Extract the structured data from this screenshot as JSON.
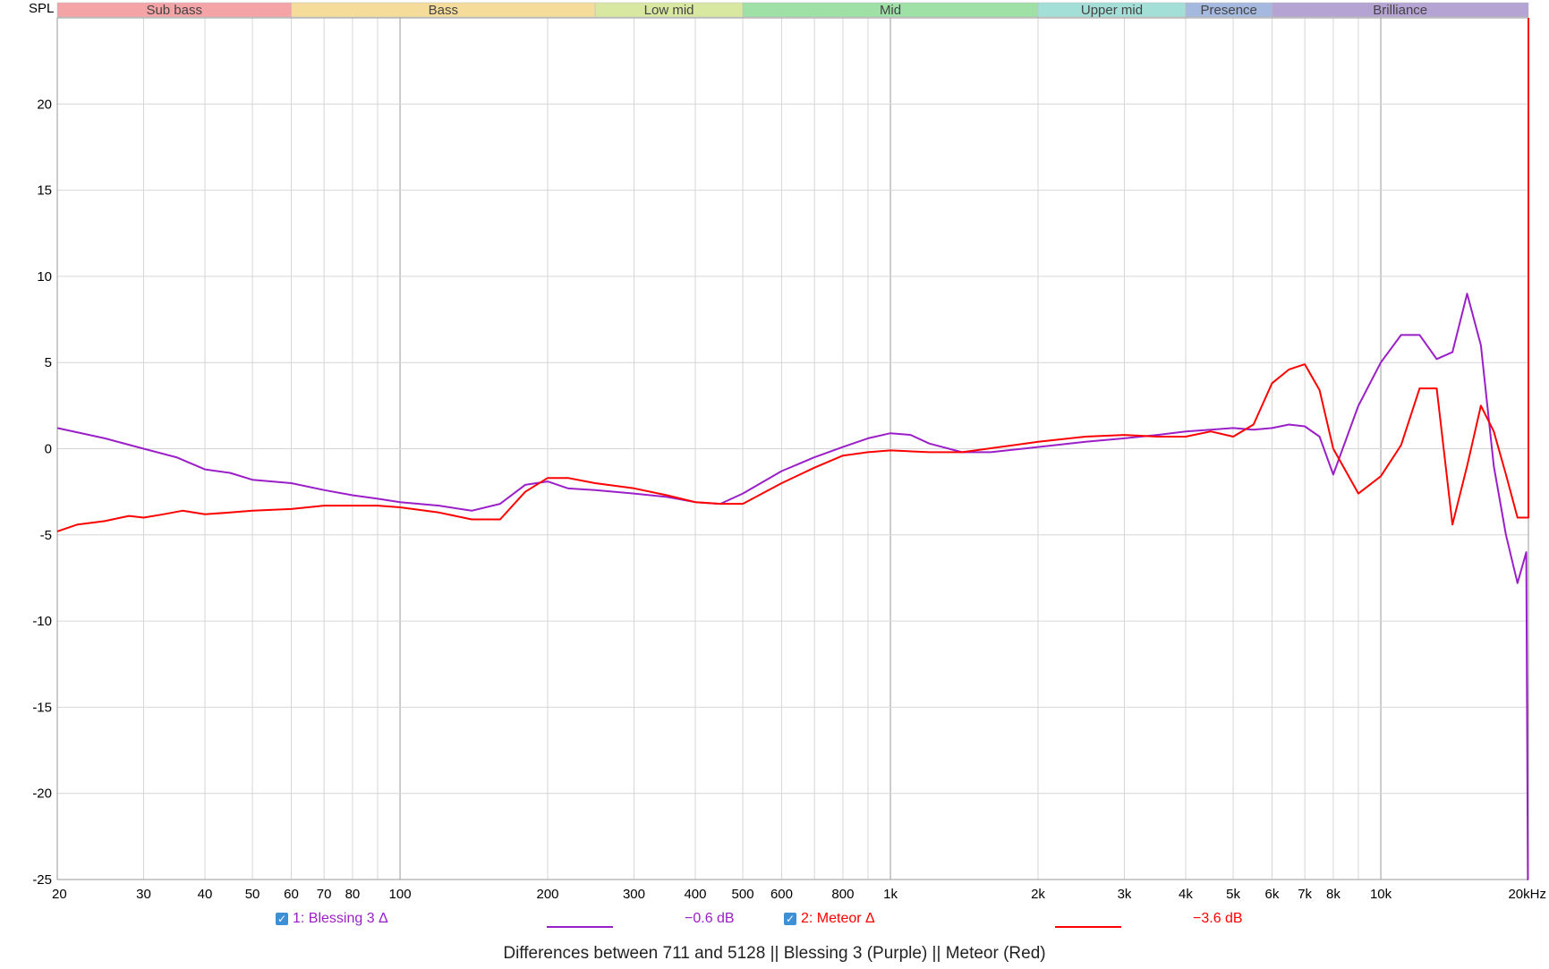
{
  "chart_data": {
    "type": "line",
    "title": "Differences between 711 and 5128 || Blessing 3 (Purple) || Meteor (Red)",
    "ylabel": "SPL",
    "x_scale": "log",
    "xlim": [
      20,
      20000
    ],
    "ylim": [
      -25,
      25
    ],
    "grid": true,
    "x_ticks": [
      {
        "value": 20,
        "label": "20"
      },
      {
        "value": 30,
        "label": "30"
      },
      {
        "value": 40,
        "label": "40"
      },
      {
        "value": 50,
        "label": "50"
      },
      {
        "value": 60,
        "label": "60"
      },
      {
        "value": 70,
        "label": "70"
      },
      {
        "value": 80,
        "label": "80"
      },
      {
        "value": 100,
        "label": "100"
      },
      {
        "value": 200,
        "label": "200"
      },
      {
        "value": 300,
        "label": "300"
      },
      {
        "value": 400,
        "label": "400"
      },
      {
        "value": 500,
        "label": "500"
      },
      {
        "value": 600,
        "label": "600"
      },
      {
        "value": 800,
        "label": "800"
      },
      {
        "value": 1000,
        "label": "1k"
      },
      {
        "value": 2000,
        "label": "2k"
      },
      {
        "value": 3000,
        "label": "3k"
      },
      {
        "value": 4000,
        "label": "4k"
      },
      {
        "value": 5000,
        "label": "5k"
      },
      {
        "value": 6000,
        "label": "6k"
      },
      {
        "value": 7000,
        "label": "7k"
      },
      {
        "value": 8000,
        "label": "8k"
      },
      {
        "value": 10000,
        "label": "10k"
      },
      {
        "value": 20000,
        "label": "20kHz"
      }
    ],
    "y_ticks": [
      {
        "value": 20,
        "label": "20"
      },
      {
        "value": 15,
        "label": "15"
      },
      {
        "value": 10,
        "label": "10"
      },
      {
        "value": 5,
        "label": "5"
      },
      {
        "value": 0,
        "label": "0"
      },
      {
        "value": -5,
        "label": "-5"
      },
      {
        "value": -10,
        "label": "-10"
      },
      {
        "value": -15,
        "label": "-15"
      },
      {
        "value": -20,
        "label": "-20"
      },
      {
        "value": -25,
        "label": "-25"
      }
    ],
    "bands": [
      {
        "name": "Sub bass",
        "from": 20,
        "to": 60,
        "color": "#f4a3a6"
      },
      {
        "name": "Bass",
        "from": 60,
        "to": 250,
        "color": "#f5dc9a"
      },
      {
        "name": "Low mid",
        "from": 250,
        "to": 500,
        "color": "#d9e8a0"
      },
      {
        "name": "Mid",
        "from": 500,
        "to": 2000,
        "color": "#9fe0a6"
      },
      {
        "name": "Upper mid",
        "from": 2000,
        "to": 4000,
        "color": "#a3dfd6"
      },
      {
        "name": "Presence",
        "from": 4000,
        "to": 6000,
        "color": "#a5b8de"
      },
      {
        "name": "Brilliance",
        "from": 6000,
        "to": 20000,
        "color": "#b5a3d4"
      }
    ],
    "series": [
      {
        "name": "1: Blessing 3 Δ",
        "color": "#9b1fc8",
        "offset_label": "−0.6 dB",
        "x": [
          20,
          25,
          30,
          35,
          40,
          45,
          50,
          60,
          70,
          80,
          90,
          100,
          120,
          140,
          160,
          180,
          200,
          220,
          250,
          300,
          350,
          400,
          450,
          500,
          600,
          700,
          800,
          900,
          1000,
          1100,
          1200,
          1400,
          1600,
          2000,
          2500,
          3000,
          3500,
          4000,
          4500,
          5000,
          5500,
          6000,
          6500,
          7000,
          7500,
          8000,
          9000,
          10000,
          11000,
          12000,
          13000,
          14000,
          15000,
          16000,
          17000,
          18000,
          19000,
          19800,
          19950,
          20000
        ],
        "y": [
          1.2,
          0.6,
          0.0,
          -0.5,
          -1.2,
          -1.4,
          -1.8,
          -2.0,
          -2.4,
          -2.7,
          -2.9,
          -3.1,
          -3.3,
          -3.6,
          -3.2,
          -2.1,
          -1.9,
          -2.3,
          -2.4,
          -2.6,
          -2.8,
          -3.1,
          -3.2,
          -2.6,
          -1.3,
          -0.5,
          0.1,
          0.6,
          0.9,
          0.8,
          0.3,
          -0.2,
          -0.2,
          0.1,
          0.4,
          0.6,
          0.8,
          1.0,
          1.1,
          1.2,
          1.1,
          1.2,
          1.4,
          1.3,
          0.7,
          -1.5,
          2.5,
          5.0,
          6.6,
          6.6,
          5.2,
          5.6,
          9.0,
          6.0,
          -1.0,
          -5.0,
          -7.8,
          -6.0,
          -25.0,
          -25.0
        ]
      },
      {
        "name": "2: Meteor Δ",
        "color": "#ff0000",
        "offset_label": "−3.6 dB",
        "x": [
          20,
          22,
          25,
          28,
          30,
          33,
          36,
          40,
          45,
          50,
          60,
          70,
          80,
          90,
          100,
          120,
          140,
          160,
          180,
          200,
          220,
          250,
          300,
          350,
          400,
          450,
          500,
          600,
          700,
          800,
          900,
          1000,
          1200,
          1400,
          2000,
          2500,
          3000,
          3500,
          4000,
          4500,
          5000,
          5500,
          6000,
          6500,
          7000,
          7500,
          8000,
          9000,
          10000,
          11000,
          12000,
          13000,
          14000,
          15000,
          16000,
          17000,
          18000,
          19000,
          20000,
          20000
        ],
        "y": [
          -4.8,
          -4.4,
          -4.2,
          -3.9,
          -4.0,
          -3.8,
          -3.6,
          -3.8,
          -3.7,
          -3.6,
          -3.5,
          -3.3,
          -3.3,
          -3.3,
          -3.4,
          -3.7,
          -4.1,
          -4.1,
          -2.5,
          -1.7,
          -1.7,
          -2.0,
          -2.3,
          -2.7,
          -3.1,
          -3.2,
          -3.2,
          -2.0,
          -1.1,
          -0.4,
          -0.2,
          -0.1,
          -0.2,
          -0.2,
          0.4,
          0.7,
          0.8,
          0.7,
          0.7,
          1.0,
          0.7,
          1.4,
          3.8,
          4.6,
          4.9,
          3.4,
          0.0,
          -2.6,
          -1.6,
          0.2,
          3.5,
          3.5,
          -4.4,
          -1.0,
          2.5,
          1.0,
          -1.5,
          -4.0,
          -4.0,
          25.0
        ]
      }
    ]
  },
  "legend": [
    {
      "label": "1: Blessing 3 Δ",
      "value": "−0.6 dB",
      "color": "#9b1fc8",
      "checked": true
    },
    {
      "label": "2: Meteor Δ",
      "value": "−3.6 dB",
      "color": "#ff0000",
      "checked": true
    }
  ],
  "caption": "Differences between 711 and 5128 || Blessing 3 (Purple) || Meteor (Red)"
}
